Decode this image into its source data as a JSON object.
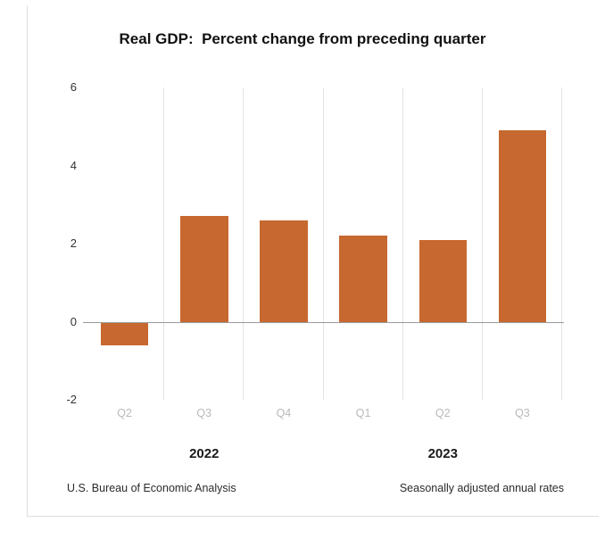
{
  "title": "Real GDP:  Percent change from preceding quarter",
  "chart_data": {
    "type": "bar",
    "title": "Real GDP:  Percent change from preceding quarter",
    "categories": [
      "Q2",
      "Q3",
      "Q4",
      "Q1",
      "Q2",
      "Q3"
    ],
    "values": [
      -0.6,
      2.7,
      2.6,
      2.2,
      2.1,
      4.9
    ],
    "year_groups": [
      {
        "label": "2022",
        "span": 3
      },
      {
        "label": "2023",
        "span": 3
      }
    ],
    "xlabel": "",
    "ylabel": "",
    "ylim": [
      -2,
      6
    ],
    "yticks": [
      6,
      4,
      2,
      0,
      -2
    ],
    "bar_color": "#C6682F",
    "gridline_color": "#e3e3e3",
    "zero_line_color": "#9b9b9b",
    "grid": "vertical",
    "legend": "none"
  },
  "footer": {
    "source": "U.S. Bureau of Economic Analysis",
    "note": "Seasonally adjusted annual rates"
  }
}
